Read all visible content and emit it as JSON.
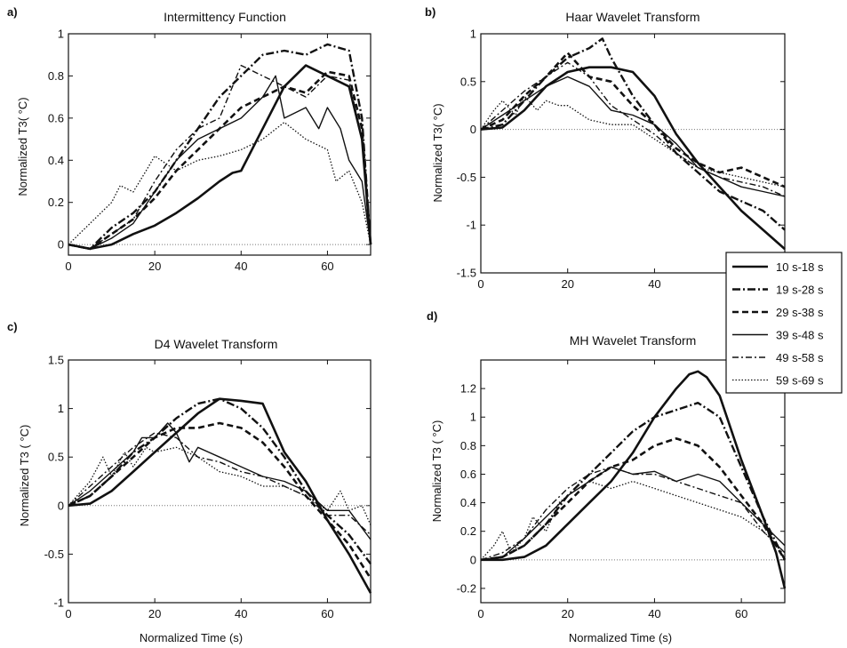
{
  "figure": {
    "legend": {
      "placement": "right-middle",
      "entries": [
        {
          "label": "10 s-18 s",
          "style": "solid-bold"
        },
        {
          "label": "19 s-28 s",
          "style": "dashdot-bold"
        },
        {
          "label": "29 s-38 s",
          "style": "dashed-bold"
        },
        {
          "label": "39 s-48 s",
          "style": "solid-thin"
        },
        {
          "label": "49 s-58 s",
          "style": "dashdot-thin"
        },
        {
          "label": "59 s-69 s",
          "style": "dotted"
        }
      ]
    }
  },
  "chart_data": [
    {
      "panel_label": "a)",
      "type": "line",
      "title": "Intermittency Function",
      "xlabel": "",
      "ylabel": "Normalized T3( °C)",
      "xlim": [
        0,
        70
      ],
      "ylim": [
        -0.05,
        1
      ],
      "xticks": [
        "0",
        "20",
        "40",
        "60"
      ],
      "yticks": [
        "0",
        "0.2",
        "0.4",
        "0.6",
        "0.8",
        "1"
      ],
      "grid": false,
      "reference_line": {
        "y": 0,
        "style": "dotted"
      },
      "series": [
        {
          "style": "solid-bold",
          "x": [
            0,
            5,
            10,
            15,
            20,
            25,
            30,
            35,
            38,
            40,
            45,
            50,
            55,
            60,
            65,
            68,
            70
          ],
          "y": [
            0,
            -0.02,
            0,
            0.05,
            0.09,
            0.15,
            0.22,
            0.3,
            0.34,
            0.35,
            0.55,
            0.75,
            0.85,
            0.8,
            0.75,
            0.5,
            0
          ]
        },
        {
          "style": "dashdot-bold",
          "x": [
            0,
            5,
            10,
            15,
            20,
            25,
            30,
            35,
            40,
            45,
            50,
            55,
            60,
            65,
            68,
            70
          ],
          "y": [
            0,
            -0.02,
            0.08,
            0.15,
            0.25,
            0.4,
            0.55,
            0.7,
            0.8,
            0.9,
            0.92,
            0.9,
            0.95,
            0.92,
            0.6,
            0
          ]
        },
        {
          "style": "dashed-bold",
          "x": [
            0,
            5,
            10,
            15,
            20,
            25,
            30,
            35,
            40,
            45,
            50,
            55,
            60,
            65,
            68,
            70
          ],
          "y": [
            0,
            -0.02,
            0.05,
            0.12,
            0.22,
            0.35,
            0.45,
            0.55,
            0.65,
            0.7,
            0.75,
            0.72,
            0.82,
            0.8,
            0.55,
            0
          ]
        },
        {
          "style": "solid-thin",
          "x": [
            0,
            5,
            10,
            15,
            20,
            25,
            30,
            35,
            40,
            45,
            48,
            50,
            55,
            58,
            60,
            63,
            65,
            68,
            70
          ],
          "y": [
            0,
            -0.02,
            0.03,
            0.1,
            0.25,
            0.4,
            0.5,
            0.55,
            0.6,
            0.7,
            0.8,
            0.6,
            0.65,
            0.55,
            0.65,
            0.55,
            0.4,
            0.3,
            0
          ]
        },
        {
          "style": "dashdot-thin",
          "x": [
            0,
            5,
            10,
            15,
            20,
            25,
            30,
            35,
            40,
            45,
            50,
            55,
            60,
            65,
            68,
            70
          ],
          "y": [
            0,
            -0.02,
            0.05,
            0.12,
            0.3,
            0.45,
            0.55,
            0.6,
            0.85,
            0.8,
            0.75,
            0.7,
            0.8,
            0.78,
            0.5,
            0
          ]
        },
        {
          "style": "dotted",
          "x": [
            0,
            5,
            10,
            12,
            15,
            18,
            20,
            25,
            30,
            35,
            40,
            45,
            50,
            55,
            60,
            62,
            65,
            68,
            70
          ],
          "y": [
            0,
            0.1,
            0.2,
            0.28,
            0.25,
            0.35,
            0.42,
            0.35,
            0.4,
            0.42,
            0.45,
            0.5,
            0.58,
            0.5,
            0.45,
            0.3,
            0.35,
            0.2,
            0
          ]
        }
      ]
    },
    {
      "panel_label": "b)",
      "type": "line",
      "title": "Haar Wavelet Transform",
      "xlabel": "",
      "ylabel": "Normalized T3( °C)",
      "xlim": [
        0,
        70
      ],
      "ylim": [
        -1.5,
        1
      ],
      "xticks": [
        "0",
        "20",
        "40"
      ],
      "yticks": [
        "-1.5",
        "-1",
        "-0.5",
        "0",
        "0.5",
        "1"
      ],
      "grid": false,
      "reference_line": {
        "y": 0,
        "style": "dotted"
      },
      "series": [
        {
          "style": "solid-bold",
          "x": [
            0,
            5,
            10,
            15,
            20,
            25,
            30,
            35,
            40,
            45,
            50,
            55,
            60,
            65,
            70
          ],
          "y": [
            0,
            0.02,
            0.2,
            0.45,
            0.6,
            0.65,
            0.65,
            0.6,
            0.35,
            -0.05,
            -0.35,
            -0.6,
            -0.85,
            -1.05,
            -1.25
          ]
        },
        {
          "style": "dashdot-bold",
          "x": [
            0,
            5,
            10,
            15,
            20,
            25,
            28,
            30,
            35,
            40,
            45,
            50,
            55,
            60,
            65,
            70
          ],
          "y": [
            0,
            0.05,
            0.3,
            0.55,
            0.75,
            0.85,
            0.95,
            0.75,
            0.35,
            0.05,
            -0.25,
            -0.45,
            -0.65,
            -0.75,
            -0.85,
            -1.05
          ]
        },
        {
          "style": "dashed-bold",
          "x": [
            0,
            5,
            10,
            15,
            20,
            25,
            30,
            35,
            40,
            45,
            50,
            55,
            60,
            65,
            70
          ],
          "y": [
            0,
            0.1,
            0.35,
            0.55,
            0.8,
            0.55,
            0.5,
            0.25,
            0.05,
            -0.2,
            -0.35,
            -0.45,
            -0.4,
            -0.5,
            -0.6
          ]
        },
        {
          "style": "solid-thin",
          "x": [
            0,
            5,
            10,
            15,
            20,
            25,
            30,
            35,
            40,
            45,
            50,
            55,
            60,
            65,
            70
          ],
          "y": [
            0,
            0.15,
            0.3,
            0.45,
            0.55,
            0.45,
            0.2,
            0.15,
            0.05,
            -0.15,
            -0.4,
            -0.5,
            -0.6,
            -0.65,
            -0.7
          ]
        },
        {
          "style": "dashdot-thin",
          "x": [
            0,
            5,
            10,
            15,
            20,
            25,
            30,
            35,
            40,
            45,
            50,
            55,
            60,
            65,
            70
          ],
          "y": [
            0,
            0.2,
            0.4,
            0.55,
            0.7,
            0.55,
            0.25,
            0.1,
            -0.05,
            -0.25,
            -0.4,
            -0.5,
            -0.55,
            -0.6,
            -0.7
          ]
        },
        {
          "style": "dotted",
          "x": [
            0,
            3,
            5,
            8,
            10,
            13,
            15,
            18,
            20,
            25,
            30,
            35,
            40,
            45,
            50,
            55,
            60,
            65,
            70
          ],
          "y": [
            0,
            0.2,
            0.3,
            0.15,
            0.35,
            0.2,
            0.3,
            0.25,
            0.25,
            0.1,
            0.05,
            0.05,
            -0.1,
            -0.25,
            -0.4,
            -0.45,
            -0.5,
            -0.55,
            -0.6
          ]
        }
      ]
    },
    {
      "panel_label": "c)",
      "type": "line",
      "title": "D4 Wavelet Transform",
      "xlabel": "Normalized Time (s)",
      "ylabel": "Normalized T3 ( °C)",
      "xlim": [
        0,
        70
      ],
      "ylim": [
        -1,
        1.5
      ],
      "xticks": [
        "0",
        "20",
        "40",
        "60"
      ],
      "yticks": [
        "-1",
        "-0.5",
        "0",
        "0.5",
        "1",
        "1.5"
      ],
      "grid": false,
      "reference_line": {
        "y": 0,
        "style": "dotted"
      },
      "series": [
        {
          "style": "solid-bold",
          "x": [
            0,
            5,
            10,
            15,
            20,
            25,
            30,
            35,
            40,
            45,
            50,
            55,
            60,
            65,
            70
          ],
          "y": [
            0,
            0.02,
            0.15,
            0.35,
            0.55,
            0.75,
            0.95,
            1.1,
            1.08,
            1.05,
            0.55,
            0.25,
            -0.15,
            -0.5,
            -0.9
          ]
        },
        {
          "style": "dashdot-bold",
          "x": [
            0,
            5,
            10,
            15,
            20,
            25,
            30,
            35,
            40,
            45,
            50,
            55,
            60,
            65,
            70
          ],
          "y": [
            0,
            0.1,
            0.3,
            0.55,
            0.7,
            0.9,
            1.05,
            1.1,
            1.0,
            0.8,
            0.5,
            0.15,
            -0.1,
            -0.3,
            -0.6
          ]
        },
        {
          "style": "dashed-bold",
          "x": [
            0,
            5,
            10,
            15,
            20,
            25,
            30,
            35,
            40,
            45,
            50,
            55,
            60,
            65,
            70
          ],
          "y": [
            0,
            0.1,
            0.3,
            0.5,
            0.7,
            0.8,
            0.8,
            0.85,
            0.8,
            0.65,
            0.4,
            0.1,
            -0.15,
            -0.4,
            -0.75
          ]
        },
        {
          "style": "solid-thin",
          "x": [
            0,
            5,
            10,
            15,
            17,
            20,
            23,
            25,
            28,
            30,
            35,
            40,
            45,
            50,
            55,
            60,
            65,
            70
          ],
          "y": [
            0,
            0.15,
            0.35,
            0.55,
            0.7,
            0.7,
            0.85,
            0.75,
            0.45,
            0.6,
            0.5,
            0.4,
            0.3,
            0.25,
            0.15,
            -0.05,
            -0.05,
            -0.35
          ]
        },
        {
          "style": "dashdot-thin",
          "x": [
            0,
            5,
            10,
            15,
            20,
            25,
            30,
            35,
            40,
            45,
            50,
            55,
            60,
            65,
            70
          ],
          "y": [
            0,
            0.2,
            0.4,
            0.6,
            0.75,
            0.7,
            0.5,
            0.45,
            0.35,
            0.3,
            0.2,
            0.1,
            -0.1,
            -0.1,
            -0.3
          ]
        },
        {
          "style": "dotted",
          "x": [
            0,
            5,
            8,
            10,
            13,
            15,
            18,
            20,
            25,
            30,
            35,
            40,
            45,
            50,
            55,
            60,
            63,
            65,
            68,
            70
          ],
          "y": [
            0,
            0.25,
            0.5,
            0.3,
            0.55,
            0.4,
            0.6,
            0.55,
            0.6,
            0.5,
            0.35,
            0.3,
            0.2,
            0.2,
            0.1,
            -0.05,
            0.15,
            -0.05,
            0.0,
            -0.2
          ]
        }
      ]
    },
    {
      "panel_label": "d)",
      "type": "line",
      "title": "MH Wavelet Transform",
      "xlabel": "Normalized Time (s)",
      "ylabel": "Normalized T3 ( °C)",
      "xlim": [
        0,
        70
      ],
      "ylim": [
        -0.3,
        1.4
      ],
      "xticks": [
        "0",
        "20",
        "40",
        "60"
      ],
      "yticks": [
        "-0.2",
        "0",
        "0.2",
        "0.4",
        "0.6",
        "0.8",
        "1",
        "1.2"
      ],
      "grid": false,
      "reference_line": {
        "y": 0,
        "style": "dotted"
      },
      "series": [
        {
          "style": "solid-bold",
          "x": [
            0,
            5,
            10,
            15,
            20,
            25,
            30,
            35,
            40,
            45,
            48,
            50,
            52,
            55,
            60,
            65,
            68,
            70
          ],
          "y": [
            0,
            0,
            0.02,
            0.1,
            0.25,
            0.4,
            0.55,
            0.75,
            1.0,
            1.2,
            1.3,
            1.32,
            1.28,
            1.15,
            0.7,
            0.3,
            0.05,
            -0.2
          ]
        },
        {
          "style": "dashdot-bold",
          "x": [
            0,
            5,
            10,
            15,
            20,
            25,
            30,
            35,
            40,
            45,
            50,
            55,
            60,
            65,
            70
          ],
          "y": [
            0,
            0.02,
            0.1,
            0.25,
            0.45,
            0.6,
            0.75,
            0.9,
            1.0,
            1.05,
            1.1,
            1.0,
            0.65,
            0.3,
            0
          ]
        },
        {
          "style": "dashed-bold",
          "x": [
            0,
            5,
            10,
            15,
            20,
            25,
            30,
            35,
            40,
            45,
            50,
            55,
            60,
            65,
            70
          ],
          "y": [
            0,
            0.02,
            0.1,
            0.25,
            0.4,
            0.55,
            0.65,
            0.7,
            0.8,
            0.85,
            0.8,
            0.65,
            0.45,
            0.25,
            0
          ]
        },
        {
          "style": "solid-thin",
          "x": [
            0,
            5,
            10,
            15,
            20,
            25,
            30,
            35,
            40,
            45,
            50,
            55,
            60,
            65,
            70
          ],
          "y": [
            0,
            0.02,
            0.15,
            0.3,
            0.45,
            0.55,
            0.65,
            0.6,
            0.62,
            0.55,
            0.6,
            0.55,
            0.4,
            0.25,
            0.1
          ]
        },
        {
          "style": "dashdot-thin",
          "x": [
            0,
            5,
            10,
            15,
            20,
            25,
            30,
            35,
            40,
            45,
            50,
            55,
            60,
            65,
            70
          ],
          "y": [
            0,
            0.05,
            0.15,
            0.35,
            0.5,
            0.6,
            0.65,
            0.6,
            0.6,
            0.55,
            0.5,
            0.45,
            0.4,
            0.2,
            0.05
          ]
        },
        {
          "style": "dotted",
          "x": [
            0,
            3,
            5,
            7,
            10,
            12,
            15,
            18,
            20,
            25,
            30,
            35,
            40,
            45,
            50,
            55,
            60,
            65,
            70
          ],
          "y": [
            0,
            0.1,
            0.2,
            0.05,
            0.15,
            0.3,
            0.2,
            0.4,
            0.45,
            0.55,
            0.5,
            0.55,
            0.5,
            0.45,
            0.4,
            0.35,
            0.3,
            0.2,
            0.05
          ]
        }
      ]
    }
  ]
}
